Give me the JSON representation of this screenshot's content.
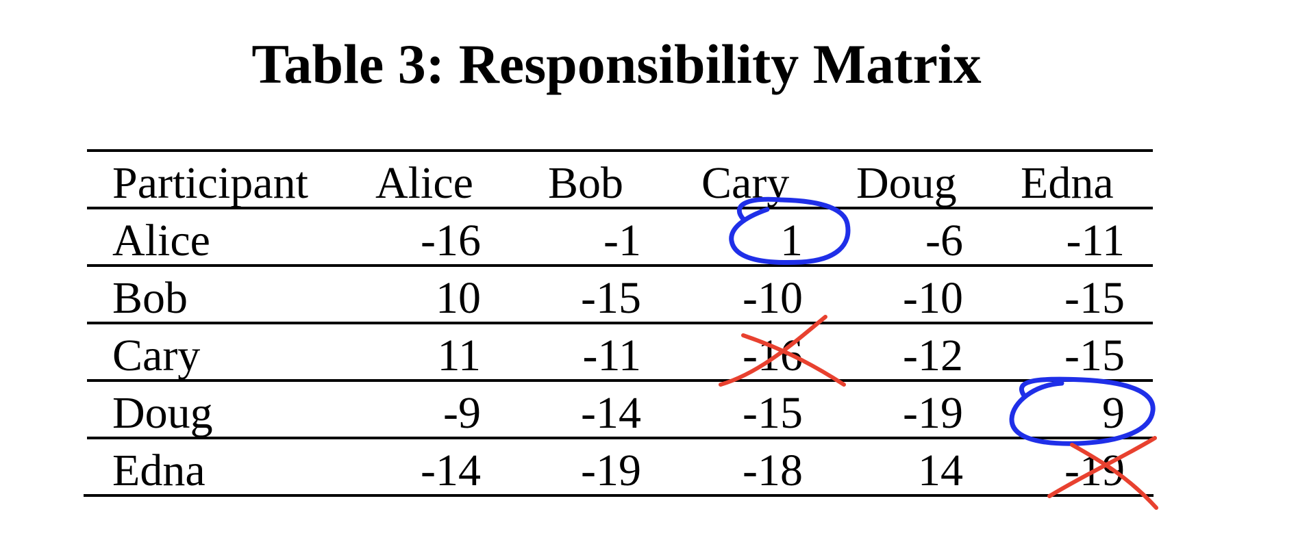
{
  "title": "Table 3: Responsibility Matrix",
  "table": {
    "headers": [
      "Participant",
      "Alice",
      "Bob",
      "Cary",
      "Doug",
      "Edna"
    ],
    "rows": [
      {
        "label": "Alice",
        "values": [
          "-16",
          "-1",
          "1",
          "-6",
          "-11"
        ]
      },
      {
        "label": "Bob",
        "values": [
          "10",
          "-15",
          "-10",
          "-10",
          "-15"
        ]
      },
      {
        "label": "Cary",
        "values": [
          "11",
          "-11",
          "-16",
          "-12",
          "-15"
        ]
      },
      {
        "label": "Doug",
        "values": [
          "-9",
          "-14",
          "-15",
          "-19",
          "9"
        ]
      },
      {
        "label": "Edna",
        "values": [
          "-14",
          "-19",
          "-18",
          "14",
          "-19"
        ]
      }
    ]
  },
  "annotations": {
    "circle_color": "#1f2fe8",
    "cross_color": "#e8412f",
    "circled": [
      {
        "row": "Alice",
        "column": "Cary",
        "value": "1"
      },
      {
        "row": "Doug",
        "column": "Edna",
        "value": "9"
      }
    ],
    "crossed": [
      {
        "row": "Cary",
        "column": "Cary",
        "value": "-16"
      },
      {
        "row": "Edna",
        "column": "Edna",
        "value": "-19"
      }
    ]
  }
}
